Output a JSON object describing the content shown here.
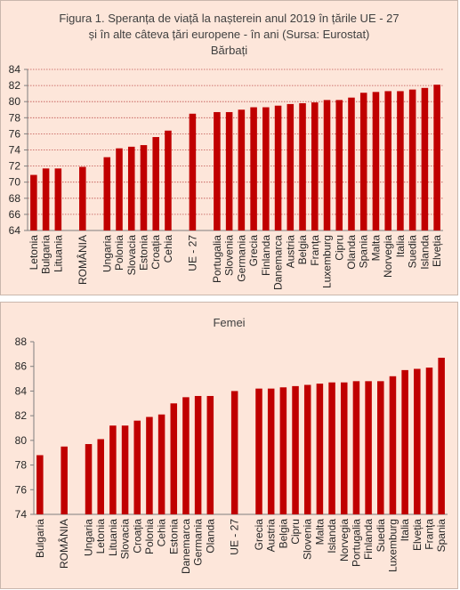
{
  "colors": {
    "bar": "#c00000",
    "grid": "#c0504d",
    "axis": "#7f7f7f",
    "panel_bg": "#fde6da"
  },
  "chart_data": [
    {
      "type": "bar",
      "title_lines": [
        "Figura 1. Speranța de viață la nașterein anul 2019  în țările UE  - 27",
        "și în alte câteva țări europene - în ani (Sursa: Eurostat)",
        "Bărbați"
      ],
      "ylim": [
        64,
        84
      ],
      "yticks": [
        64,
        66,
        68,
        70,
        72,
        74,
        76,
        78,
        80,
        82,
        84
      ],
      "grid": true,
      "categories": [
        "Letonia",
        "Bulgaria",
        "Lituania",
        "",
        "ROMÂNIA",
        "",
        "Ungaria",
        "Polonia",
        "Slovacia",
        "Estonia",
        "Croația",
        "Cehia",
        "",
        "UE - 27",
        "",
        "Portugalia",
        "Slovenia",
        "Germania",
        "Grecia",
        "Finlanda",
        "Danemarca",
        "Austria",
        "Belgia",
        "Franța",
        "Luxemburg",
        "Cipru",
        "Olanda",
        "Spania",
        "Malta",
        "Norvegia",
        "Italia",
        "Suedia",
        "Islanda",
        "Elveția"
      ],
      "values": [
        70.9,
        71.7,
        71.7,
        null,
        71.9,
        null,
        73.1,
        74.2,
        74.4,
        74.6,
        75.6,
        76.4,
        null,
        78.5,
        null,
        78.7,
        78.7,
        79.0,
        79.3,
        79.3,
        79.5,
        79.7,
        79.8,
        79.9,
        80.2,
        80.2,
        80.5,
        81.1,
        81.2,
        81.3,
        81.3,
        81.5,
        81.7,
        82.1
      ]
    },
    {
      "type": "bar",
      "title_lines": [
        "Femei"
      ],
      "ylim": [
        74,
        88
      ],
      "yticks": [
        74,
        76,
        78,
        80,
        82,
        84,
        86,
        88
      ],
      "grid": false,
      "categories": [
        "Bulgaria",
        "",
        "ROMÂNIA",
        "",
        "Ungaria",
        "Letonia",
        "Lituania",
        "Slovacia",
        "Croația",
        "Polonia",
        "Cehia",
        "Estonia",
        "Danemarca",
        "Germania",
        "Olanda",
        "",
        "UE - 27",
        "",
        "Grecia",
        "Austria",
        "Belgia",
        "Cipru",
        "Slovenia",
        "Malta",
        "Islanda",
        "Norvegia",
        "Portugalia",
        "Finlanda",
        "Suedia",
        "Luxemburg",
        "Italia",
        "Elveția",
        "Franța",
        "Spania"
      ],
      "values": [
        78.8,
        null,
        79.5,
        null,
        79.7,
        80.1,
        81.2,
        81.2,
        81.6,
        81.9,
        82.1,
        83.0,
        83.5,
        83.6,
        83.6,
        null,
        84.0,
        null,
        84.2,
        84.2,
        84.3,
        84.4,
        84.5,
        84.6,
        84.7,
        84.7,
        84.8,
        84.8,
        84.8,
        85.2,
        85.7,
        85.8,
        85.9,
        86.7
      ]
    }
  ]
}
